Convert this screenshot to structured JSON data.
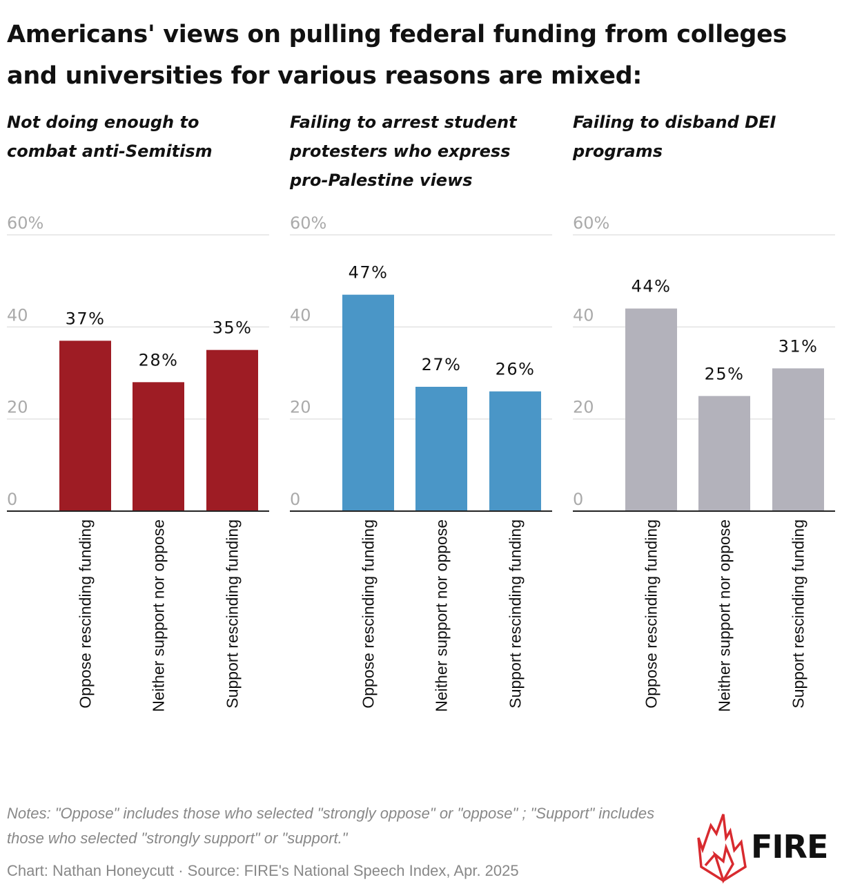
{
  "title": "Americans' views on pulling federal funding from colleges and universities for various reasons are mixed:",
  "colors": {
    "red": "#9e1c24",
    "blue": "#4a96c7",
    "gray": "#b3b2bb"
  },
  "chart_data": [
    {
      "type": "bar",
      "title": "Not doing enough to combat anti-Semitism",
      "categories": [
        "Oppose rescinding funding",
        "Neither support nor oppose",
        "Support rescinding funding"
      ],
      "values": [
        37,
        28,
        35
      ],
      "value_labels": [
        "37%",
        "28%",
        "35%"
      ],
      "ylim": [
        0,
        60
      ],
      "yticks": [
        0,
        20,
        40,
        60
      ],
      "ytick_labels": [
        "0",
        "20",
        "40",
        "60%"
      ],
      "color": "#9e1c24"
    },
    {
      "type": "bar",
      "title": "Failing to arrest student protesters who express pro-Palestine views",
      "categories": [
        "Oppose rescinding funding",
        "Neither support nor oppose",
        "Support rescinding funding"
      ],
      "values": [
        47,
        27,
        26
      ],
      "value_labels": [
        "47%",
        "27%",
        "26%"
      ],
      "ylim": [
        0,
        60
      ],
      "yticks": [
        0,
        20,
        40,
        60
      ],
      "ytick_labels": [
        "0",
        "20",
        "40",
        "60%"
      ],
      "color": "#4a96c7"
    },
    {
      "type": "bar",
      "title": "Failing to disband DEI programs",
      "categories": [
        "Oppose rescinding funding",
        "Neither support nor oppose",
        "Support rescinding funding"
      ],
      "values": [
        44,
        25,
        31
      ],
      "value_labels": [
        "44%",
        "25%",
        "31%"
      ],
      "ylim": [
        0,
        60
      ],
      "yticks": [
        0,
        20,
        40,
        60
      ],
      "ytick_labels": [
        "0",
        "20",
        "40",
        "60%"
      ],
      "color": "#b3b2bb"
    }
  ],
  "notes": "Notes: \"Oppose\" includes those who selected \"strongly oppose\" or \"oppose\" ; \"Support\" includes those who selected \"strongly support\" or \"support.\"",
  "credit": "Chart: Nathan Honeycutt · Source: FIRE's National Speech Index, Apr. 2025",
  "logo": {
    "text": "FIRE",
    "icon": "flame-icon"
  }
}
